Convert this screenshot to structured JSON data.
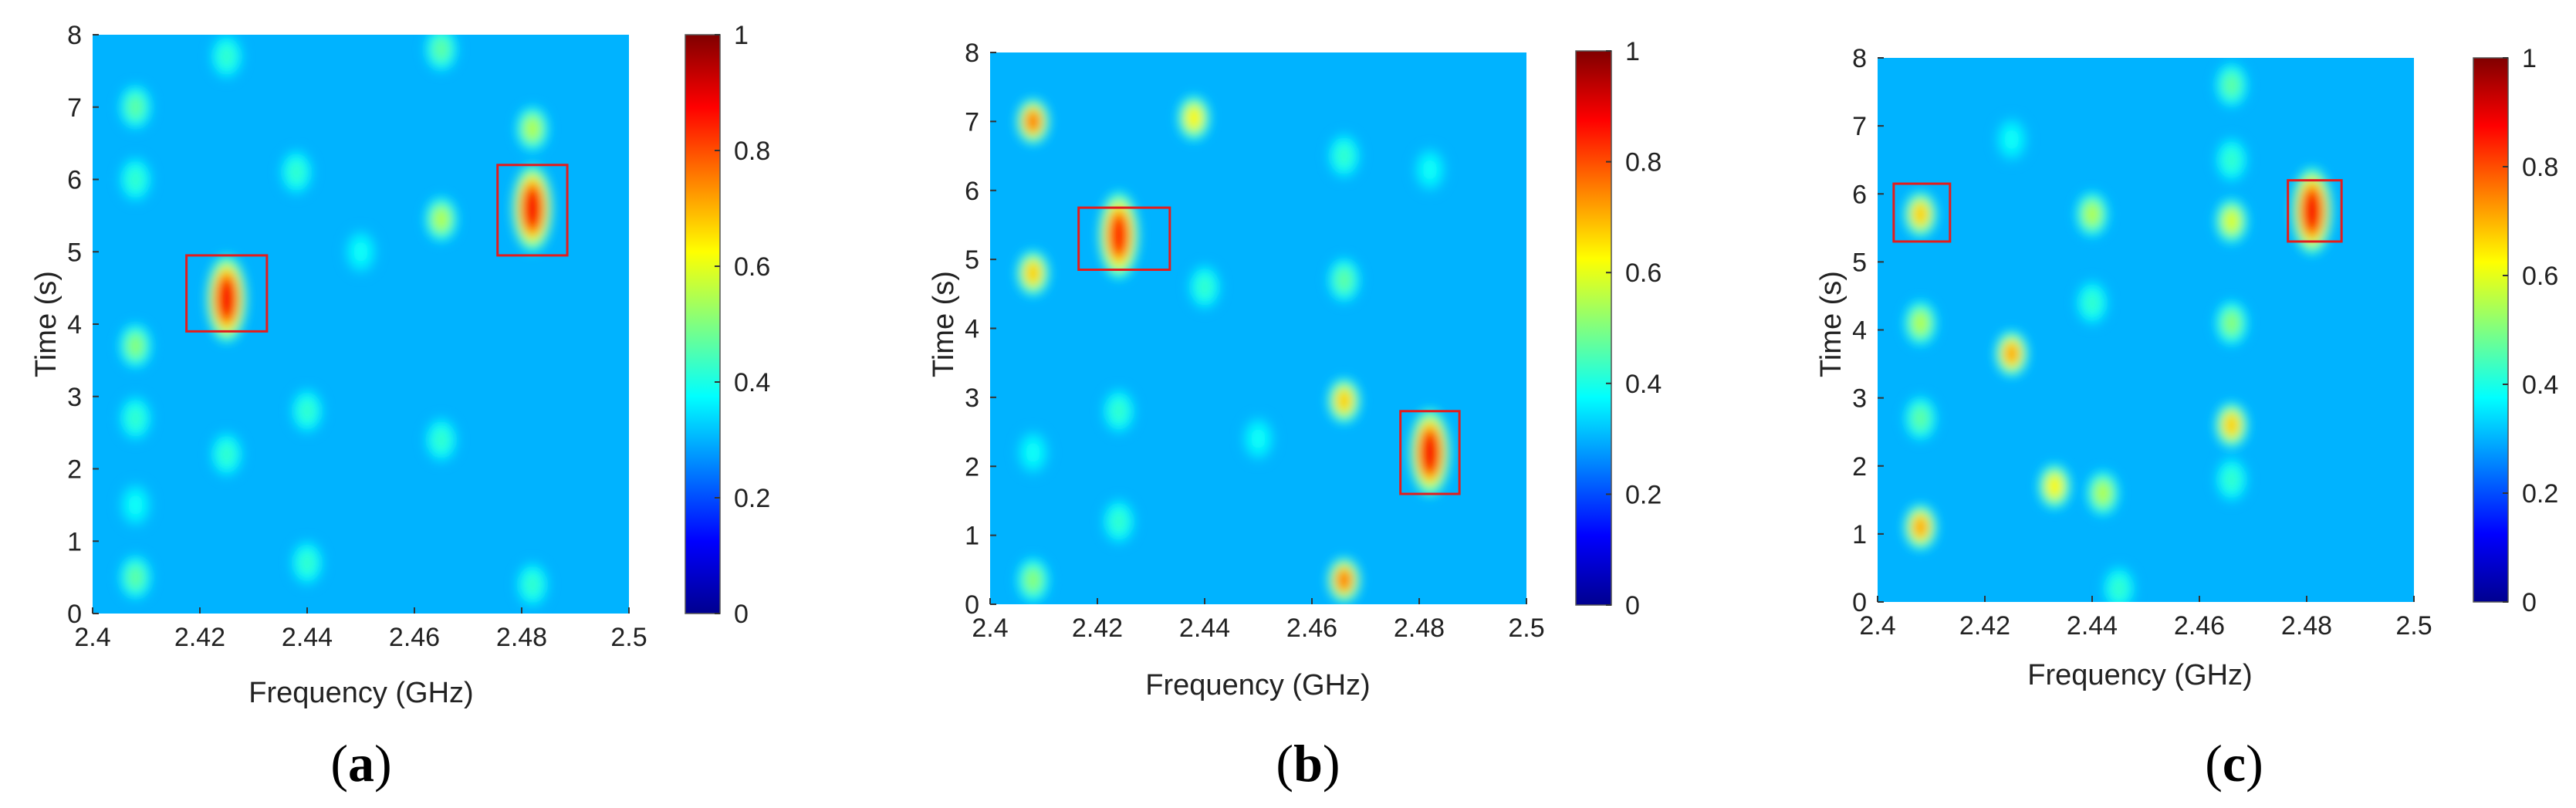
{
  "figure": {
    "panels": [
      {
        "label_open": "(",
        "label_letter": "a",
        "label_close": ")"
      },
      {
        "label_open": "(",
        "label_letter": "b",
        "label_close": ")"
      },
      {
        "label_open": "(",
        "label_letter": "c",
        "label_close": ")"
      }
    ]
  },
  "colors": {
    "colormap": [
      "#00008f",
      "#0000ff",
      "#0080ff",
      "#00ffff",
      "#80ff80",
      "#ffff00",
      "#ff8000",
      "#ff0000",
      "#800000"
    ],
    "box": "#e31c1c",
    "background_level": 0.3
  },
  "chart_data": [
    {
      "type": "heatmap",
      "panel": "a",
      "xlabel": "Frequency (GHz)",
      "ylabel": "Time (s)",
      "xlim": [
        2.4,
        2.5
      ],
      "ylim": [
        0,
        8
      ],
      "xticks": [
        2.4,
        2.42,
        2.44,
        2.46,
        2.48,
        2.5
      ],
      "xtick_labels": [
        "2.4",
        "2.42",
        "2.44",
        "2.46",
        "2.48",
        "2.5"
      ],
      "yticks": [
        0,
        1,
        2,
        3,
        4,
        5,
        6,
        7,
        8
      ],
      "ytick_labels": [
        "0",
        "1",
        "2",
        "3",
        "4",
        "5",
        "6",
        "7",
        "8"
      ],
      "colorbar": {
        "ticks": [
          0,
          0.2,
          0.4,
          0.6,
          0.8,
          1
        ],
        "tick_labels": [
          "0",
          "0.2",
          "0.4",
          "0.6",
          "0.8",
          "1"
        ]
      },
      "hotspots": [
        {
          "f": 2.425,
          "t": 4.35,
          "v": 1.0
        },
        {
          "f": 2.482,
          "t": 5.6,
          "v": 1.0
        },
        {
          "f": 2.482,
          "t": 6.7,
          "v": 0.6
        },
        {
          "f": 2.465,
          "t": 5.45,
          "v": 0.6
        },
        {
          "f": 2.408,
          "t": 3.7,
          "v": 0.55
        },
        {
          "f": 2.408,
          "t": 7.0,
          "v": 0.5
        },
        {
          "f": 2.408,
          "t": 6.0,
          "v": 0.45
        },
        {
          "f": 2.408,
          "t": 2.7,
          "v": 0.45
        },
        {
          "f": 2.408,
          "t": 0.5,
          "v": 0.5
        },
        {
          "f": 2.408,
          "t": 1.5,
          "v": 0.4
        },
        {
          "f": 2.425,
          "t": 7.7,
          "v": 0.45
        },
        {
          "f": 2.425,
          "t": 2.2,
          "v": 0.45
        },
        {
          "f": 2.438,
          "t": 6.1,
          "v": 0.45
        },
        {
          "f": 2.44,
          "t": 2.8,
          "v": 0.45
        },
        {
          "f": 2.44,
          "t": 0.7,
          "v": 0.45
        },
        {
          "f": 2.465,
          "t": 7.8,
          "v": 0.5
        },
        {
          "f": 2.465,
          "t": 2.4,
          "v": 0.45
        },
        {
          "f": 2.482,
          "t": 0.4,
          "v": 0.45
        },
        {
          "f": 2.45,
          "t": 5.0,
          "v": 0.4
        }
      ],
      "boxes": [
        {
          "f0": 2.4175,
          "f1": 2.4325,
          "t0": 3.9,
          "t1": 4.95
        },
        {
          "f0": 2.4755,
          "f1": 2.4885,
          "t0": 4.95,
          "t1": 6.2
        }
      ]
    },
    {
      "type": "heatmap",
      "panel": "b",
      "xlabel": "Frequency (GHz)",
      "ylabel": "Time (s)",
      "xlim": [
        2.4,
        2.5
      ],
      "ylim": [
        0,
        8
      ],
      "xticks": [
        2.4,
        2.42,
        2.44,
        2.46,
        2.48,
        2.5
      ],
      "xtick_labels": [
        "2.4",
        "2.42",
        "2.44",
        "2.46",
        "2.48",
        "2.5"
      ],
      "yticks": [
        0,
        1,
        2,
        3,
        4,
        5,
        6,
        7,
        8
      ],
      "ytick_labels": [
        "0",
        "1",
        "2",
        "3",
        "4",
        "5",
        "6",
        "7",
        "8"
      ],
      "colorbar": {
        "ticks": [
          0,
          0.2,
          0.4,
          0.6,
          0.8,
          1
        ],
        "tick_labels": [
          "0",
          "0.2",
          "0.4",
          "0.6",
          "0.8",
          "1"
        ]
      },
      "hotspots": [
        {
          "f": 2.424,
          "t": 5.35,
          "v": 0.95
        },
        {
          "f": 2.482,
          "t": 2.2,
          "v": 1.0
        },
        {
          "f": 2.408,
          "t": 7.0,
          "v": 0.85
        },
        {
          "f": 2.408,
          "t": 4.8,
          "v": 0.75
        },
        {
          "f": 2.438,
          "t": 7.05,
          "v": 0.7
        },
        {
          "f": 2.466,
          "t": 2.95,
          "v": 0.75
        },
        {
          "f": 2.466,
          "t": 0.35,
          "v": 0.85
        },
        {
          "f": 2.408,
          "t": 0.35,
          "v": 0.55
        },
        {
          "f": 2.408,
          "t": 2.2,
          "v": 0.4
        },
        {
          "f": 2.424,
          "t": 2.8,
          "v": 0.45
        },
        {
          "f": 2.424,
          "t": 1.2,
          "v": 0.45
        },
        {
          "f": 2.466,
          "t": 6.5,
          "v": 0.45
        },
        {
          "f": 2.466,
          "t": 4.7,
          "v": 0.5
        },
        {
          "f": 2.44,
          "t": 4.6,
          "v": 0.45
        },
        {
          "f": 2.45,
          "t": 2.4,
          "v": 0.4
        },
        {
          "f": 2.482,
          "t": 6.3,
          "v": 0.4
        }
      ],
      "boxes": [
        {
          "f0": 2.4165,
          "f1": 2.4335,
          "t0": 4.85,
          "t1": 5.75
        },
        {
          "f0": 2.4765,
          "f1": 2.4875,
          "t0": 1.6,
          "t1": 2.8
        }
      ]
    },
    {
      "type": "heatmap",
      "panel": "c",
      "xlabel": "Frequency (GHz)",
      "ylabel": "Time (s)",
      "xlim": [
        2.4,
        2.5
      ],
      "ylim": [
        0,
        8
      ],
      "xticks": [
        2.4,
        2.42,
        2.44,
        2.46,
        2.48,
        2.5
      ],
      "xtick_labels": [
        "2.4",
        "2.42",
        "2.44",
        "2.46",
        "2.48",
        "2.5"
      ],
      "yticks": [
        0,
        1,
        2,
        3,
        4,
        5,
        6,
        7,
        8
      ],
      "ytick_labels": [
        "0",
        "1",
        "2",
        "3",
        "4",
        "5",
        "6",
        "7",
        "8"
      ],
      "colorbar": {
        "ticks": [
          0,
          0.2,
          0.4,
          0.6,
          0.8,
          1
        ],
        "tick_labels": [
          "0",
          "0.2",
          "0.4",
          "0.6",
          "0.8",
          "1"
        ]
      },
      "hotspots": [
        {
          "f": 2.408,
          "t": 5.7,
          "v": 0.75
        },
        {
          "f": 2.481,
          "t": 5.75,
          "v": 1.0
        },
        {
          "f": 2.425,
          "t": 3.65,
          "v": 0.8
        },
        {
          "f": 2.408,
          "t": 1.1,
          "v": 0.8
        },
        {
          "f": 2.466,
          "t": 2.6,
          "v": 0.75
        },
        {
          "f": 2.466,
          "t": 5.6,
          "v": 0.65
        },
        {
          "f": 2.433,
          "t": 1.7,
          "v": 0.7
        },
        {
          "f": 2.442,
          "t": 1.6,
          "v": 0.6
        },
        {
          "f": 2.44,
          "t": 5.7,
          "v": 0.6
        },
        {
          "f": 2.408,
          "t": 4.1,
          "v": 0.6
        },
        {
          "f": 2.408,
          "t": 2.7,
          "v": 0.5
        },
        {
          "f": 2.466,
          "t": 4.1,
          "v": 0.55
        },
        {
          "f": 2.466,
          "t": 7.6,
          "v": 0.5
        },
        {
          "f": 2.466,
          "t": 6.5,
          "v": 0.45
        },
        {
          "f": 2.44,
          "t": 4.4,
          "v": 0.45
        },
        {
          "f": 2.425,
          "t": 6.8,
          "v": 0.4
        },
        {
          "f": 2.466,
          "t": 1.8,
          "v": 0.45
        },
        {
          "f": 2.445,
          "t": 0.2,
          "v": 0.45
        }
      ],
      "boxes": [
        {
          "f0": 2.403,
          "f1": 2.4135,
          "t0": 5.3,
          "t1": 6.15
        },
        {
          "f0": 2.4765,
          "f1": 2.4865,
          "t0": 5.3,
          "t1": 6.2
        }
      ]
    }
  ]
}
